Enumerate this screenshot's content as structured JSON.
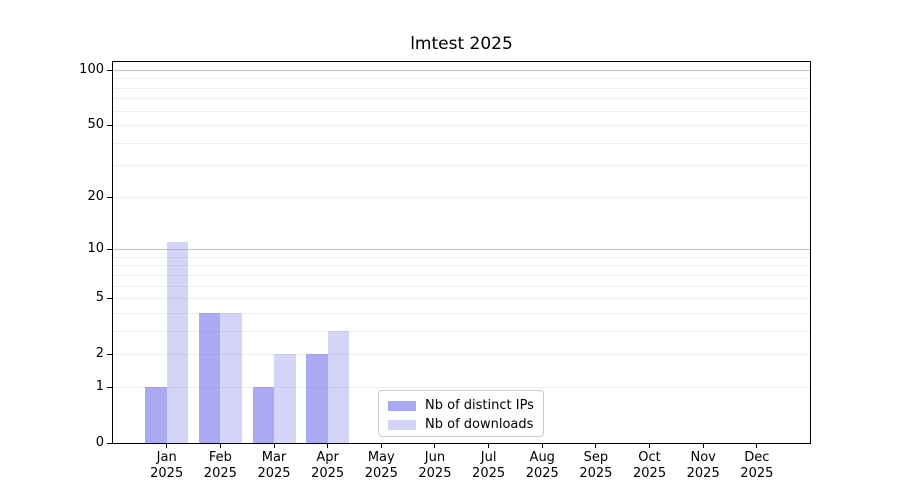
{
  "page": {
    "background": "#ffffff"
  },
  "chart_data": {
    "type": "bar",
    "title": "lmtest 2025",
    "categories": [
      "Jan",
      "Feb",
      "Mar",
      "Apr",
      "May",
      "Jun",
      "Jul",
      "Aug",
      "Sep",
      "Oct",
      "Nov",
      "Dec"
    ],
    "x_year": "2025",
    "series": [
      {
        "name": "Nb of distinct IPs",
        "color": "rgba(92,92,232,0.52)",
        "values": [
          1,
          4,
          1,
          2,
          0,
          0,
          0,
          0,
          0,
          0,
          0,
          0
        ]
      },
      {
        "name": "Nb of downloads",
        "color": "rgba(125,125,238,0.33)",
        "values": [
          11,
          4,
          2,
          3,
          0,
          0,
          0,
          0,
          0,
          0,
          0,
          0
        ]
      }
    ],
    "yscale": "log1p",
    "ylim": [
      0,
      112
    ],
    "yticks": [
      0,
      1,
      2,
      5,
      10,
      20,
      50,
      100
    ],
    "minor_gridlines": [
      1,
      2,
      3,
      4,
      5,
      6,
      7,
      8,
      9,
      20,
      30,
      40,
      50,
      60,
      70,
      80,
      90
    ],
    "major_gridlines": [
      10,
      100
    ],
    "grid": true,
    "legend_position": "lower center",
    "colors": {
      "axis": "#000000",
      "minor_grid": "#ececec",
      "major_grid": "#c4c4c4",
      "legend_border": "#cbcbcb",
      "text": "#000000"
    }
  }
}
